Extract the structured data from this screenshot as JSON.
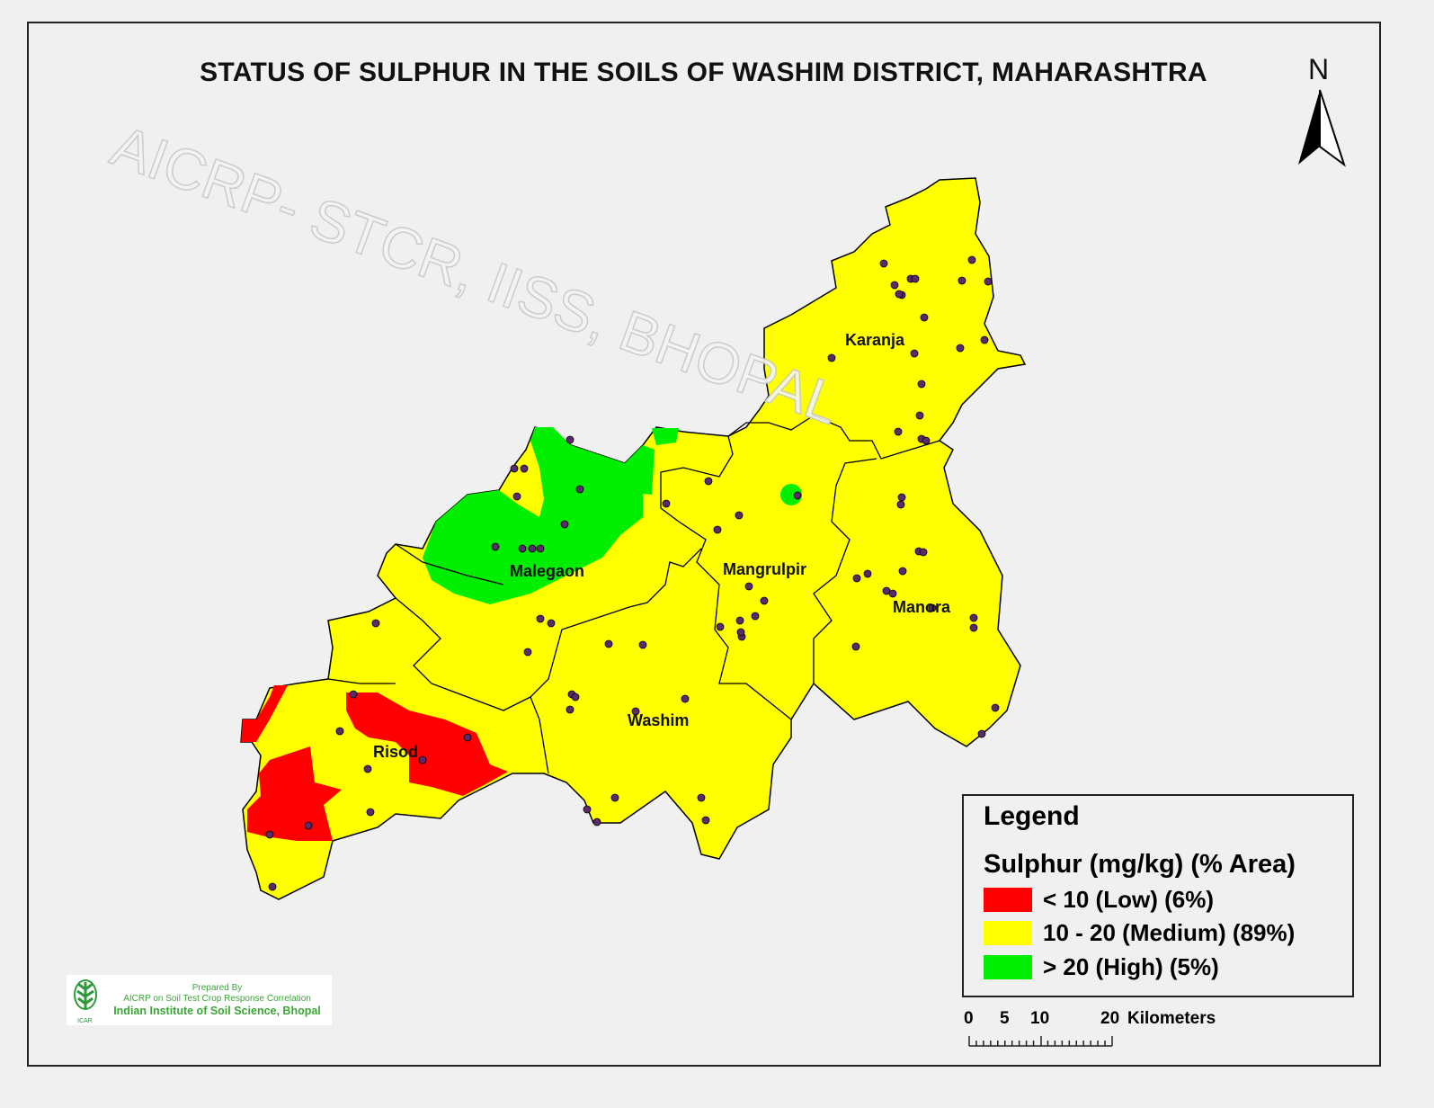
{
  "title": "STATUS OF SULPHUR IN THE SOILS OF WASHIM DISTRICT, MAHARASHTRA",
  "north_arrow": {
    "label": "N"
  },
  "watermark": "AICRP- STCR, IISS, BHOPAL",
  "talukas": [
    "Karanja",
    "Malegaon",
    "Mangrulpir",
    "Manora",
    "Washim",
    "Risod"
  ],
  "legend": {
    "title": "Legend",
    "subtitle": "Sulphur (mg/kg) (% Area)",
    "classes": [
      {
        "label": "< 10 (Low) (6%)",
        "color": "#ff0000"
      },
      {
        "label": "10 - 20 (Medium) (89%)",
        "color": "#ffff00"
      },
      {
        "label": "> 20  (High) (5%)",
        "color": "#00ee00"
      }
    ]
  },
  "scale_bar": {
    "ticks": [
      "0",
      "5",
      "10",
      "20"
    ],
    "unit": "Kilometers"
  },
  "credit": {
    "line1": "Prepared By",
    "line2": "AICRP on Soil Test Crop Response Correlation",
    "line3": "Indian Institute of Soil Science, Bhopal",
    "logo_text": "ICAR"
  },
  "colors": {
    "sample_point": "#5a2a6a",
    "boundary": "#000000",
    "background": "#f0f0f0"
  }
}
